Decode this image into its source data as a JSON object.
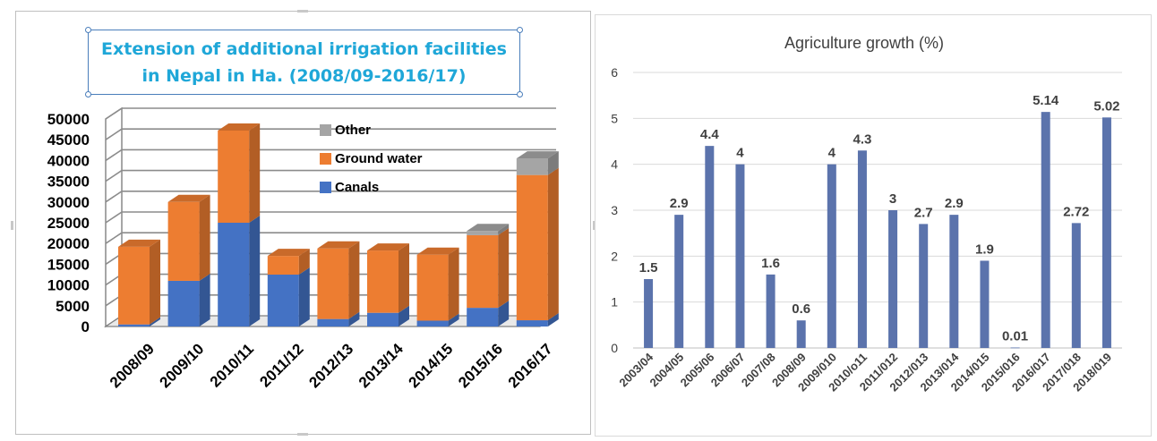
{
  "left_chart": {
    "title": "Extension of additional  irrigation facilities in Nepal in Ha. (2008/09-2016/17)",
    "chart_data": {
      "type": "bar",
      "stacked": true,
      "three_d": true,
      "title": "Extension of additional  irrigation facilities in Nepal in Ha. (2008/09-2016/17)",
      "categories": [
        "2008/09",
        "2009/10",
        "2010/11",
        "2011/12",
        "2012/13",
        "2013/14",
        "2014/15",
        "2015/16",
        "2016/17"
      ],
      "series": [
        {
          "name": "Canals",
          "color": "#4472c4",
          "values": [
            500,
            11000,
            25000,
            12500,
            1800,
            3300,
            1400,
            4500,
            1500
          ]
        },
        {
          "name": "Ground water",
          "color": "#ed7d31",
          "values": [
            18700,
            19000,
            22200,
            4500,
            17000,
            15000,
            15900,
            17500,
            35000
          ]
        },
        {
          "name": "Other",
          "color": "#a5a5a5",
          "values": [
            0,
            0,
            0,
            0,
            0,
            0,
            0,
            1000,
            4000
          ]
        }
      ],
      "y_ticks": [
        "0",
        "5000",
        "10000",
        "15000",
        "20000",
        "25000",
        "30000",
        "35000",
        "40000",
        "45000",
        "50000"
      ],
      "ylim": [
        0,
        50000
      ],
      "legend_position": "top-center",
      "grid": true
    }
  },
  "right_chart": {
    "chart_data": {
      "type": "bar",
      "title": "Agriculture growth (%)",
      "categories": [
        "2003/04",
        "2004/05",
        "2005/06",
        "2006/07",
        "2007/08",
        "2008/09",
        "2009/010",
        "2010/o11",
        "2011/012",
        "2012/013",
        "2013/014",
        "2014/015",
        "2015/016",
        "2016/017",
        "2017/018",
        "2018/019"
      ],
      "values": [
        1.5,
        2.9,
        4.4,
        4,
        1.6,
        0.6,
        4,
        4.3,
        3,
        2.7,
        2.9,
        1.9,
        0.01,
        5.14,
        2.72,
        5.02
      ],
      "data_labels": [
        "1.5",
        "2.9",
        "4.4",
        "4",
        "1.6",
        "0.6",
        "4",
        "4.3",
        "3",
        "2.7",
        "2.9",
        "1.9",
        "0.01",
        "5.14",
        "2.72",
        "5.02"
      ],
      "y_ticks": [
        "0",
        "1",
        "2",
        "3",
        "4",
        "5",
        "6"
      ],
      "ylim": [
        0,
        6
      ],
      "bar_color": "#5b73ac",
      "grid": true
    }
  }
}
